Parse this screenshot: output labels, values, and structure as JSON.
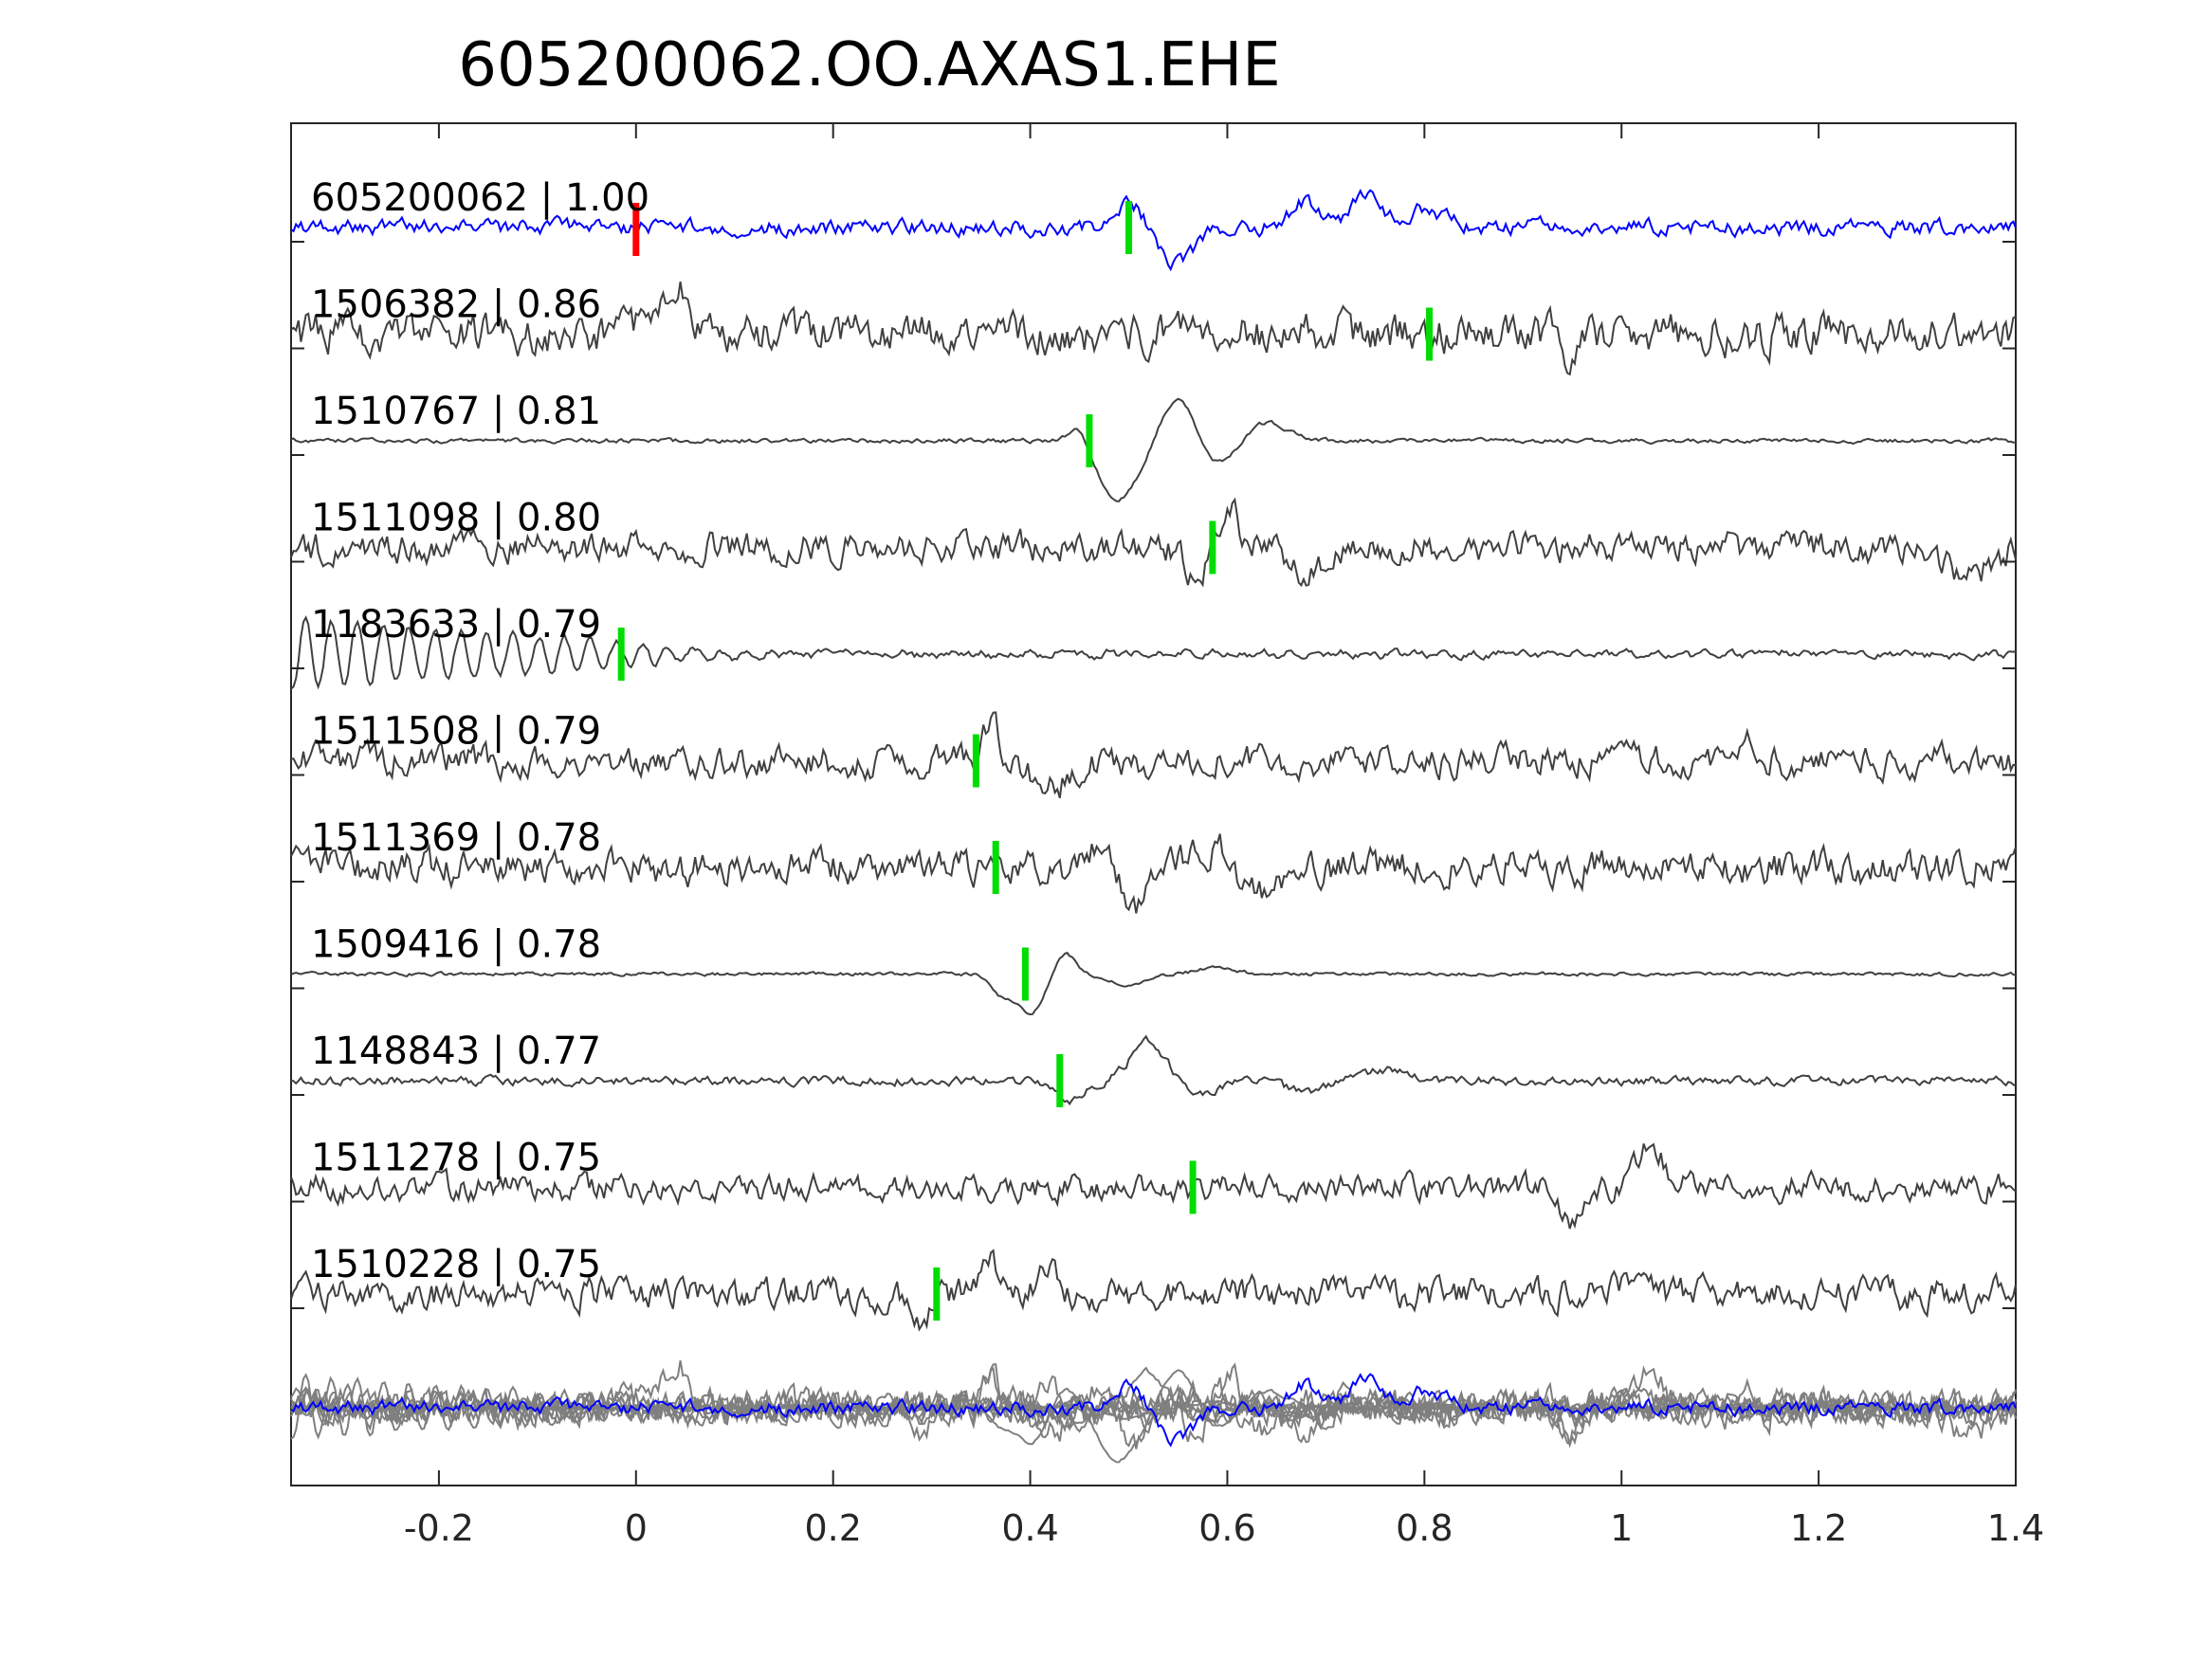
{
  "chart_data": {
    "type": "line",
    "title": "605200062.OO.AXAS1.EHE",
    "xlabel": "",
    "ylabel": "",
    "xlim": [
      -0.35,
      1.4
    ],
    "xticks": [
      -0.2,
      0,
      0.2,
      0.4,
      0.6,
      0.8,
      1,
      1.2,
      1.4
    ],
    "xtick_labels": [
      "-0.2",
      "0",
      "0.2",
      "0.4",
      "0.6",
      "0.8",
      "1",
      "1.2",
      "1.4"
    ],
    "grid": false,
    "colors": {
      "reference": "#0000ff",
      "trace": "#404040",
      "overlay": "#7f7f7f",
      "origin_marker": "#ff0000",
      "pick_marker": "#00dd00"
    },
    "series": [
      {
        "name": "605200062 | 1.00",
        "pick": 0.5,
        "origin": 0.0,
        "reference": true,
        "features": [
          [
            0.5,
            0.75,
            0.02
          ],
          [
            0.55,
            -1.0,
            0.025
          ],
          [
            0.68,
            0.7,
            0.02
          ],
          [
            0.74,
            1.0,
            0.02
          ],
          [
            0.8,
            0.5,
            0.03
          ]
        ],
        "noise": 0.18,
        "seed": 3
      },
      {
        "name": "1506382 | 0.86",
        "pick": 0.805,
        "features": [
          [
            0.01,
            0.4,
            0.01
          ],
          [
            0.04,
            1.4,
            0.015
          ],
          [
            0.95,
            -0.7,
            0.01
          ]
        ],
        "noise": 0.45,
        "seed": 7
      },
      {
        "name": "1510767 | 0.81",
        "pick": 0.46,
        "features": [
          [
            0.45,
            0.5,
            0.015
          ],
          [
            0.49,
            -1.6,
            0.03
          ],
          [
            0.55,
            1.2,
            0.025
          ],
          [
            0.59,
            -0.7,
            0.025
          ],
          [
            0.64,
            0.5,
            0.03
          ]
        ],
        "noise": 0.05,
        "seed": 11
      },
      {
        "name": "1511098 | 0.80",
        "pick": 0.585,
        "features": [
          [
            0.57,
            -1.0,
            0.015
          ],
          [
            0.6,
            1.1,
            0.015
          ],
          [
            0.68,
            -0.8,
            0.025
          ],
          [
            1.35,
            -0.8,
            0.03
          ]
        ],
        "noise": 0.35,
        "seed": 13
      },
      {
        "name": "1183633 | 0.79",
        "pick": -0.015,
        "features": [],
        "noise": 0.08,
        "seed": 17,
        "osc": {
          "amp": 1.0,
          "freq": 38,
          "decay_start": -0.35,
          "decay_len": 0.5
        }
      },
      {
        "name": "1511508 | 0.79",
        "pick": 0.345,
        "features": [
          [
            0.36,
            0.9,
            0.012
          ],
          [
            0.42,
            -0.8,
            0.025
          ],
          [
            1.12,
            0.6,
            0.02
          ]
        ],
        "noise": 0.35,
        "seed": 19
      },
      {
        "name": "1511369 | 0.78",
        "pick": 0.365,
        "features": [
          [
            0.47,
            0.8,
            0.015
          ],
          [
            0.51,
            -1.1,
            0.02
          ],
          [
            0.58,
            0.6,
            0.025
          ],
          [
            0.63,
            -0.8,
            0.02
          ]
        ],
        "noise": 0.4,
        "seed": 23
      },
      {
        "name": "1509416 | 0.78",
        "pick": 0.395,
        "features": [
          [
            0.37,
            -0.5,
            0.015
          ],
          [
            0.4,
            -1.1,
            0.02
          ],
          [
            0.435,
            0.6,
            0.015
          ],
          [
            0.5,
            -0.3,
            0.025
          ],
          [
            0.59,
            0.2,
            0.025
          ]
        ],
        "noise": 0.04,
        "seed": 29
      },
      {
        "name": "1148843 | 0.77",
        "pick": 0.43,
        "features": [
          [
            0.44,
            -0.6,
            0.02
          ],
          [
            0.52,
            1.1,
            0.025
          ],
          [
            0.57,
            -0.4,
            0.025
          ],
          [
            0.68,
            -0.3,
            0.03
          ],
          [
            0.76,
            0.3,
            0.03
          ]
        ],
        "noise": 0.1,
        "seed": 31
      },
      {
        "name": "1511278 | 0.75",
        "pick": 0.565,
        "features": [
          [
            0.95,
            -1.0,
            0.015
          ],
          [
            1.03,
            1.1,
            0.02
          ]
        ],
        "noise": 0.3,
        "seed": 37
      },
      {
        "name": "1510228 | 0.75",
        "pick": 0.305,
        "features": [
          [
            0.29,
            -0.7,
            0.012
          ],
          [
            0.36,
            0.9,
            0.015
          ],
          [
            0.42,
            0.6,
            0.015
          ],
          [
            0.99,
            0.3,
            0.02
          ]
        ],
        "noise": 0.35,
        "seed": 41
      }
    ]
  }
}
